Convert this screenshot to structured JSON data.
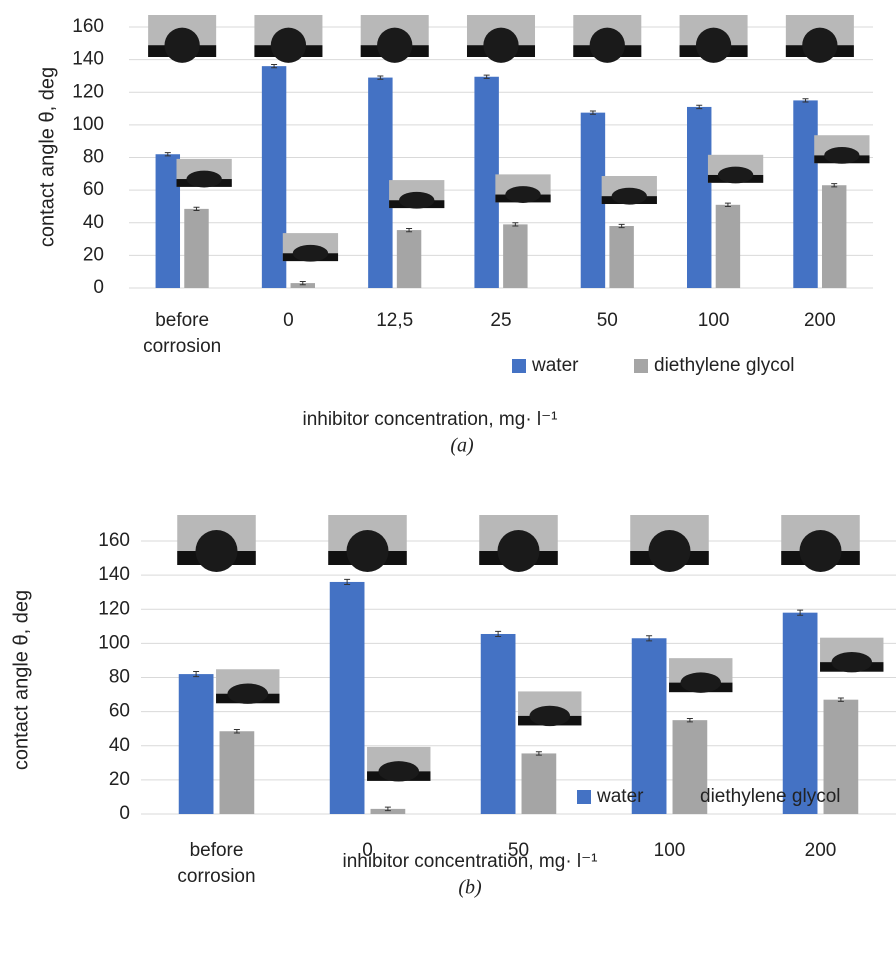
{
  "chart_data": [
    {
      "type": "bar",
      "caption": "(a)",
      "y_label": "contact angle θ, deg",
      "x_label": "inhibitor concentration, mg· l⁻¹",
      "categories": [
        "before corrosion",
        "0",
        "12,5",
        "25",
        "50",
        "100",
        "200"
      ],
      "series": [
        {
          "name": "water",
          "color": "#4472c4",
          "values": [
            82,
            136,
            129,
            129.5,
            107.5,
            111,
            115
          ],
          "errors": [
            1,
            1,
            1,
            1,
            1,
            1,
            1
          ]
        },
        {
          "name": "diethylene glycol",
          "color": "#a5a5a5",
          "values": [
            48.5,
            3,
            35.5,
            39,
            38,
            51,
            63
          ],
          "errors": [
            1,
            1,
            1,
            1,
            1,
            1,
            1
          ]
        }
      ],
      "ylim": [
        0,
        160
      ],
      "yticks": [
        0,
        20,
        40,
        60,
        80,
        100,
        120,
        140,
        160
      ],
      "grid": true
    },
    {
      "type": "bar",
      "caption": "(b)",
      "y_label": "contact angle θ, deg",
      "x_label": "inhibitor concentration, mg· l⁻¹",
      "categories": [
        "before corrosion",
        "0",
        "50",
        "100",
        "200"
      ],
      "series": [
        {
          "name": "water",
          "color": "#4472c4",
          "values": [
            82,
            136,
            105.5,
            103,
            118
          ],
          "errors": [
            1.5,
            1.5,
            1.5,
            1.5,
            1.5
          ]
        },
        {
          "name": "diethylene glycol",
          "color": "#a5a5a5",
          "values": [
            48.5,
            3,
            35.5,
            55,
            67
          ],
          "errors": [
            1,
            1,
            1,
            1,
            1
          ]
        }
      ],
      "ylim": [
        0,
        160
      ],
      "yticks": [
        0,
        20,
        40,
        60,
        80,
        100,
        120,
        140,
        160
      ],
      "grid": true
    }
  ]
}
